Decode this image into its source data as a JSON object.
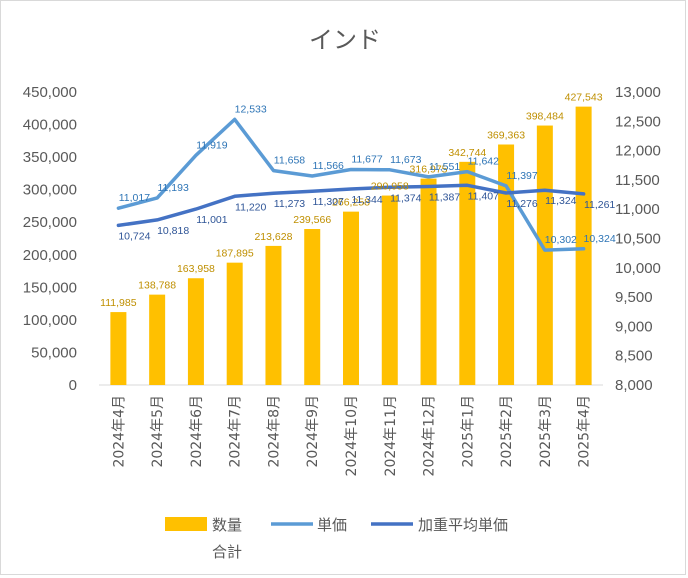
{
  "chart_data": {
    "type": "bar",
    "title": "インド",
    "categories": [
      "2024年4月",
      "2024年5月",
      "2024年6月",
      "2024年7月",
      "2024年8月",
      "2024年9月",
      "2024年10月",
      "2024年11月",
      "2024年12月",
      "2025年1月",
      "2025年2月",
      "2025年3月",
      "2025年4月"
    ],
    "series": [
      {
        "name": "数量合計",
        "chart": "bar",
        "axis": "left",
        "color": "#ffc000",
        "label_color": "#bf8f00",
        "values": [
          111985,
          138788,
          163958,
          187895,
          213628,
          239566,
          266258,
          290958,
          316975,
          342744,
          369363,
          398484,
          427543
        ],
        "labels": [
          "111,985",
          "138,788",
          "163,958",
          "187,895",
          "213,628",
          "239,566",
          "266,258",
          "290,958",
          "316,975",
          "342,744",
          "369,363",
          "398,484",
          "427,543"
        ]
      },
      {
        "name": "単価",
        "chart": "line",
        "axis": "right",
        "color": "#5b9bd5",
        "label_color": "#2e75b6",
        "values": [
          11017,
          11193,
          11919,
          12533,
          11658,
          11566,
          11677,
          11673,
          11551,
          11642,
          11397,
          10302,
          10324
        ],
        "labels": [
          "11,017",
          "11,193",
          "11,919",
          "12,533",
          "11,658",
          "11,566",
          "11,677",
          "11,673",
          "11,551",
          "11,642",
          "11,397",
          "10,302",
          "10,324"
        ]
      },
      {
        "name": "加重平均単価",
        "chart": "line",
        "axis": "right",
        "color": "#4472c4",
        "label_color": "#2f5597",
        "values": [
          10724,
          10818,
          11001,
          11220,
          11273,
          11307,
          11344,
          11374,
          11387,
          11407,
          11276,
          11324,
          11261
        ],
        "labels": [
          "10,724",
          "10,818",
          "11,001",
          "11,220",
          "11,273",
          "11,307",
          "11,344",
          "11,374",
          "11,387",
          "11,407",
          "11,276",
          "11,324",
          "11,261"
        ]
      }
    ],
    "y_left": {
      "ylim": [
        0,
        450000
      ],
      "ticks": [
        "0",
        "50,000",
        "100,000",
        "150,000",
        "200,000",
        "250,000",
        "300,000",
        "350,000",
        "400,000",
        "450,000"
      ]
    },
    "y_right": {
      "ylim": [
        8000,
        13000
      ],
      "ticks": [
        "8,000",
        "8,500",
        "9,000",
        "9,500",
        "10,000",
        "10,500",
        "11,000",
        "11,500",
        "12,000",
        "12,500",
        "13,000"
      ]
    },
    "grid": false,
    "legend_position": "bottom",
    "legend": [
      {
        "label": "数量",
        "label2": "合計",
        "icon": "bar-swatch",
        "color": "#ffc000"
      },
      {
        "label": "単価",
        "icon": "line-swatch",
        "color": "#5b9bd5"
      },
      {
        "label": "加重平均単価",
        "icon": "line-swatch",
        "color": "#4472c4"
      }
    ]
  }
}
